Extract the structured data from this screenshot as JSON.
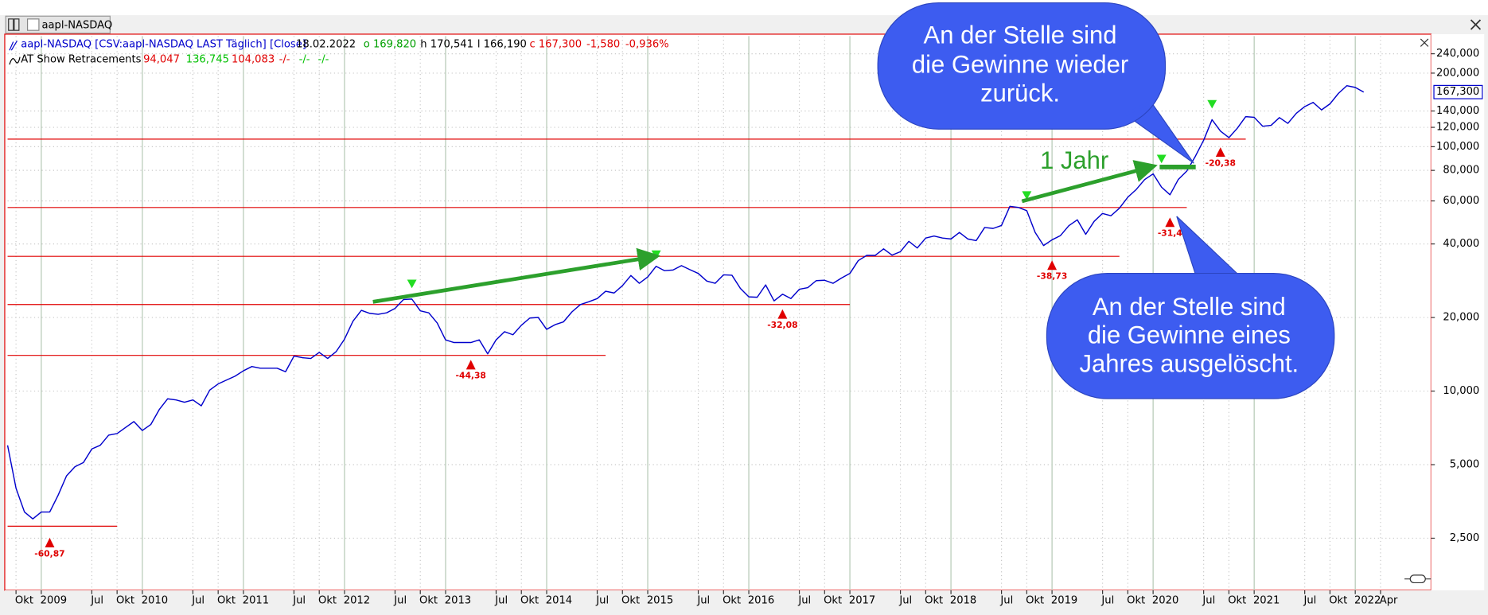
{
  "chart_data": {
    "type": "line",
    "tab": "aapl-NASDAQ",
    "header": {
      "date": "18.02.2022",
      "open": "o 169,820",
      "high": "h 170,541",
      "low": "l 166,190",
      "close": "c 167,300",
      "change": "-1,580",
      "change_pct": "-0,936%"
    },
    "indicator": {
      "name": "AT Show Retracements",
      "values": [
        "94,047",
        "136,745",
        "104,083",
        "-/-",
        "-/-",
        "-/-"
      ]
    },
    "price_tag": "167,300",
    "log_y": true,
    "grid": true,
    "xlim": [
      "2008-09",
      "2022-10"
    ],
    "ylim": [
      1.53,
      283.6
    ],
    "yticks": [
      {
        "value": 2.5,
        "label": "2,500"
      },
      {
        "value": 5,
        "label": "5,000"
      },
      {
        "value": 10,
        "label": "10,000"
      },
      {
        "value": 20,
        "label": "20,000"
      },
      {
        "value": 40,
        "label": "40,000"
      },
      {
        "value": 60,
        "label": "60,000"
      },
      {
        "value": 80,
        "label": "80,000"
      },
      {
        "value": 100,
        "label": "100,000"
      },
      {
        "value": 120,
        "label": "120,000"
      },
      {
        "value": 140,
        "label": "140,000"
      },
      {
        "value": 200,
        "label": "200,000"
      },
      {
        "value": 240,
        "label": "240,000"
      }
    ],
    "xticks": [
      {
        "value": "2008-10",
        "label": "Okt"
      },
      {
        "value": "2009-01",
        "label": "2009"
      },
      {
        "value": "2009-07",
        "label": "Jul"
      },
      {
        "value": "2009-10",
        "label": "Okt"
      },
      {
        "value": "2010-01",
        "label": "2010"
      },
      {
        "value": "2010-07",
        "label": "Jul"
      },
      {
        "value": "2010-10",
        "label": "Okt"
      },
      {
        "value": "2011-01",
        "label": "2011"
      },
      {
        "value": "2011-07",
        "label": "Jul"
      },
      {
        "value": "2011-10",
        "label": "Okt"
      },
      {
        "value": "2012-01",
        "label": "2012"
      },
      {
        "value": "2012-07",
        "label": "Jul"
      },
      {
        "value": "2012-10",
        "label": "Okt"
      },
      {
        "value": "2013-01",
        "label": "2013"
      },
      {
        "value": "2013-07",
        "label": "Jul"
      },
      {
        "value": "2013-10",
        "label": "Okt"
      },
      {
        "value": "2014-01",
        "label": "2014"
      },
      {
        "value": "2014-07",
        "label": "Jul"
      },
      {
        "value": "2014-10",
        "label": "Okt"
      },
      {
        "value": "2015-01",
        "label": "2015"
      },
      {
        "value": "2015-07",
        "label": "Jul"
      },
      {
        "value": "2015-10",
        "label": "Okt"
      },
      {
        "value": "2016-01",
        "label": "2016"
      },
      {
        "value": "2016-07",
        "label": "Jul"
      },
      {
        "value": "2016-10",
        "label": "Okt"
      },
      {
        "value": "2017-01",
        "label": "2017"
      },
      {
        "value": "2017-07",
        "label": "Jul"
      },
      {
        "value": "2017-10",
        "label": "Okt"
      },
      {
        "value": "2018-01",
        "label": "2018"
      },
      {
        "value": "2018-07",
        "label": "Jul"
      },
      {
        "value": "2018-10",
        "label": "Okt"
      },
      {
        "value": "2019-01",
        "label": "2019"
      },
      {
        "value": "2019-07",
        "label": "Jul"
      },
      {
        "value": "2019-10",
        "label": "Okt"
      },
      {
        "value": "2020-01",
        "label": "2020"
      },
      {
        "value": "2020-07",
        "label": "Jul"
      },
      {
        "value": "2020-10",
        "label": "Okt"
      },
      {
        "value": "2021-01",
        "label": "2021"
      },
      {
        "value": "2021-07",
        "label": "Jul"
      },
      {
        "value": "2021-10",
        "label": "Okt"
      },
      {
        "value": "2022-01",
        "label": "2022"
      },
      {
        "value": "2022-04",
        "label": "Apr"
      }
    ],
    "x": [
      "2008-09",
      "2008-10",
      "2008-11",
      "2008-12",
      "2009-01",
      "2009-02",
      "2009-03",
      "2009-04",
      "2009-05",
      "2009-06",
      "2009-07",
      "2009-08",
      "2009-09",
      "2009-10",
      "2009-11",
      "2009-12",
      "2010-01",
      "2010-02",
      "2010-03",
      "2010-04",
      "2010-05",
      "2010-06",
      "2010-07",
      "2010-08",
      "2010-09",
      "2010-10",
      "2010-11",
      "2010-12",
      "2011-01",
      "2011-02",
      "2011-03",
      "2011-04",
      "2011-05",
      "2011-06",
      "2011-07",
      "2011-08",
      "2011-09",
      "2011-10",
      "2011-11",
      "2011-12",
      "2012-01",
      "2012-02",
      "2012-03",
      "2012-04",
      "2012-05",
      "2012-06",
      "2012-07",
      "2012-08",
      "2012-09",
      "2012-10",
      "2012-11",
      "2012-12",
      "2013-01",
      "2013-02",
      "2013-03",
      "2013-04",
      "2013-05",
      "2013-06",
      "2013-07",
      "2013-08",
      "2013-09",
      "2013-10",
      "2013-11",
      "2013-12",
      "2014-01",
      "2014-02",
      "2014-03",
      "2014-04",
      "2014-05",
      "2014-06",
      "2014-07",
      "2014-08",
      "2014-09",
      "2014-10",
      "2014-11",
      "2014-12",
      "2015-01",
      "2015-02",
      "2015-03",
      "2015-04",
      "2015-05",
      "2015-06",
      "2015-07",
      "2015-08",
      "2015-09",
      "2015-10",
      "2015-11",
      "2015-12",
      "2016-01",
      "2016-02",
      "2016-03",
      "2016-04",
      "2016-05",
      "2016-06",
      "2016-07",
      "2016-08",
      "2016-09",
      "2016-10",
      "2016-11",
      "2016-12",
      "2017-01",
      "2017-02",
      "2017-03",
      "2017-04",
      "2017-05",
      "2017-06",
      "2017-07",
      "2017-08",
      "2017-09",
      "2017-10",
      "2017-11",
      "2017-12",
      "2018-01",
      "2018-02",
      "2018-03",
      "2018-04",
      "2018-05",
      "2018-06",
      "2018-07",
      "2018-08",
      "2018-09",
      "2018-10",
      "2018-11",
      "2018-12",
      "2019-01",
      "2019-02",
      "2019-03",
      "2019-04",
      "2019-05",
      "2019-06",
      "2019-07",
      "2019-08",
      "2019-09",
      "2019-10",
      "2019-11",
      "2019-12",
      "2020-01",
      "2020-02",
      "2020-03",
      "2020-04",
      "2020-05",
      "2020-06",
      "2020-07",
      "2020-08",
      "2020-09",
      "2020-10",
      "2020-11",
      "2020-12",
      "2021-01",
      "2021-02",
      "2021-03",
      "2021-04",
      "2021-05",
      "2021-06",
      "2021-07",
      "2021-08",
      "2021-09",
      "2021-10",
      "2021-11",
      "2021-12",
      "2022-01",
      "2022-02"
    ],
    "series": [
      {
        "name": "aapl-NASDAQ [CSV:aapl-NASDAQ LAST Täglich] [Close]",
        "color": "#0000cc",
        "values": [
          6.0,
          4.0,
          3.2,
          3.0,
          3.2,
          3.2,
          3.75,
          4.5,
          4.9,
          5.1,
          5.8,
          6.0,
          6.6,
          6.7,
          7.1,
          7.5,
          6.9,
          7.3,
          8.4,
          9.3,
          9.2,
          9.0,
          9.2,
          8.7,
          10.1,
          10.7,
          11.1,
          11.5,
          12.1,
          12.6,
          12.4,
          12.4,
          12.4,
          12.0,
          13.9,
          13.7,
          13.6,
          14.4,
          13.6,
          14.5,
          16.3,
          19.3,
          21.4,
          20.8,
          20.6,
          20.9,
          21.8,
          23.7,
          23.8,
          21.3,
          20.9,
          19.0,
          16.2,
          15.8,
          15.8,
          15.8,
          16.2,
          14.2,
          16.2,
          17.5,
          17.0,
          18.6,
          19.9,
          20.0,
          17.9,
          18.7,
          19.2,
          21.1,
          22.6,
          23.2,
          23.9,
          25.6,
          25.2,
          27.0,
          29.7,
          27.6,
          29.3,
          32.4,
          31.1,
          31.3,
          32.6,
          31.4,
          30.3,
          28.2,
          27.6,
          29.9,
          29.8,
          26.3,
          24.3,
          24.2,
          27.2,
          23.4,
          24.9,
          23.9,
          26.1,
          26.5,
          28.3,
          28.4,
          27.6,
          29.0,
          30.3,
          34.2,
          35.9,
          35.9,
          38.2,
          36.0,
          37.2,
          41.0,
          38.5,
          42.3,
          43.1,
          42.3,
          41.9,
          44.6,
          41.9,
          41.3,
          46.7,
          46.3,
          47.6,
          57.0,
          56.4,
          54.7,
          44.6,
          39.4,
          41.6,
          43.3,
          47.5,
          50.2,
          43.8,
          49.5,
          53.3,
          52.2,
          56.0,
          62.2,
          66.8,
          73.4,
          77.4,
          68.3,
          63.6,
          73.5,
          79.5,
          91.2,
          106.3,
          129.0,
          115.8,
          108.9,
          119.1,
          132.7,
          131.9,
          121.3,
          122.2,
          131.5,
          124.6,
          137.0,
          145.9,
          151.8,
          141.5,
          149.8,
          165.3,
          177.6,
          174.8,
          167.3
        ]
      }
    ],
    "retracements": {
      "levels": [
        107.4,
        56.4,
        35.6,
        22.6,
        14.0,
        2.8
      ],
      "ends": [
        "2020-12",
        "2020-05",
        "2019-09",
        "2017-01",
        "2014-08",
        "2009-10"
      ],
      "color": "#e00000"
    },
    "peaks": {
      "x": [
        "2012-09",
        "2015-02",
        "2018-10",
        "2020-02",
        "2020-08"
      ],
      "values": [
        25.2,
        33.2,
        58.0,
        81.8,
        137.0
      ],
      "color": "#22dd22"
    },
    "troughs": {
      "x": [
        "2009-02",
        "2013-04",
        "2016-05",
        "2019-01",
        "2020-03",
        "2020-09"
      ],
      "lows": [
        2.6,
        13.9,
        22.4,
        35.5,
        53.2,
        103.1
      ],
      "values": [
        -60.87,
        -44.38,
        -32.08,
        -38.73,
        -31.4,
        -20.38
      ],
      "value_labels": [
        "-60,87",
        "-44,38",
        "-32,08",
        "-38,73",
        "-31,4",
        "-20,38"
      ],
      "color": "#e00000"
    },
    "annotations": {
      "arrow_label": "1 Jahr",
      "callout_top": [
        "An der Stelle sind",
        "die Gewinne wieder",
        "zurück."
      ],
      "callout_bottom": [
        "An der Stelle sind",
        "die Gewinne eines",
        "Jahres ausgelöscht."
      ]
    }
  }
}
